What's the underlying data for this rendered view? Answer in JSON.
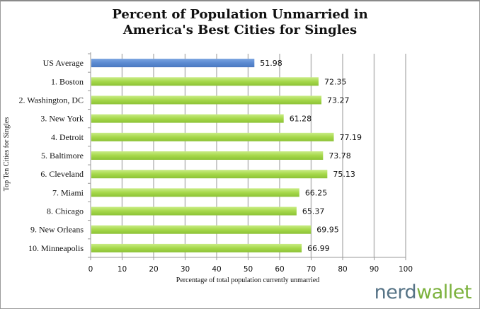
{
  "chart_data": {
    "type": "bar",
    "orientation": "horizontal",
    "title": "Percent of Population Unmarried in America's Best Cities for Singles",
    "title_lines": [
      "Percent of Population Unmarried in",
      "America's Best Cities for Singles"
    ],
    "xlabel": "Percentage of total population currently unmarried",
    "ylabel": "Top Ten Cities for Singles",
    "xlim": [
      0,
      100
    ],
    "xticks": [
      0,
      10,
      20,
      30,
      40,
      50,
      60,
      70,
      80,
      90,
      100
    ],
    "grid": "vertical",
    "legend": "none",
    "categories": [
      "US Average",
      "1. Boston",
      "2. Washington, DC",
      "3. New York",
      "4. Detroit",
      "5. Baltimore",
      "6. Cleveland",
      "7. Miami",
      "8. Chicago",
      "9. New Orleans",
      "10. Minneapolis"
    ],
    "values": [
      51.98,
      72.35,
      73.27,
      61.28,
      77.19,
      73.78,
      75.13,
      66.25,
      65.37,
      69.95,
      66.99
    ],
    "value_labels": [
      "51.98",
      "72.35",
      "73.27",
      "61.28",
      "77.19",
      "73.78",
      "75.13",
      "66.25",
      "65.37",
      "69.95",
      "66.99"
    ],
    "colors": {
      "highlight": "#5b8ad1",
      "bar": "#a6d84a",
      "grid": "#b8b8b8"
    }
  },
  "branding": {
    "logo_part1": "nerd",
    "logo_part2": "wallet"
  }
}
